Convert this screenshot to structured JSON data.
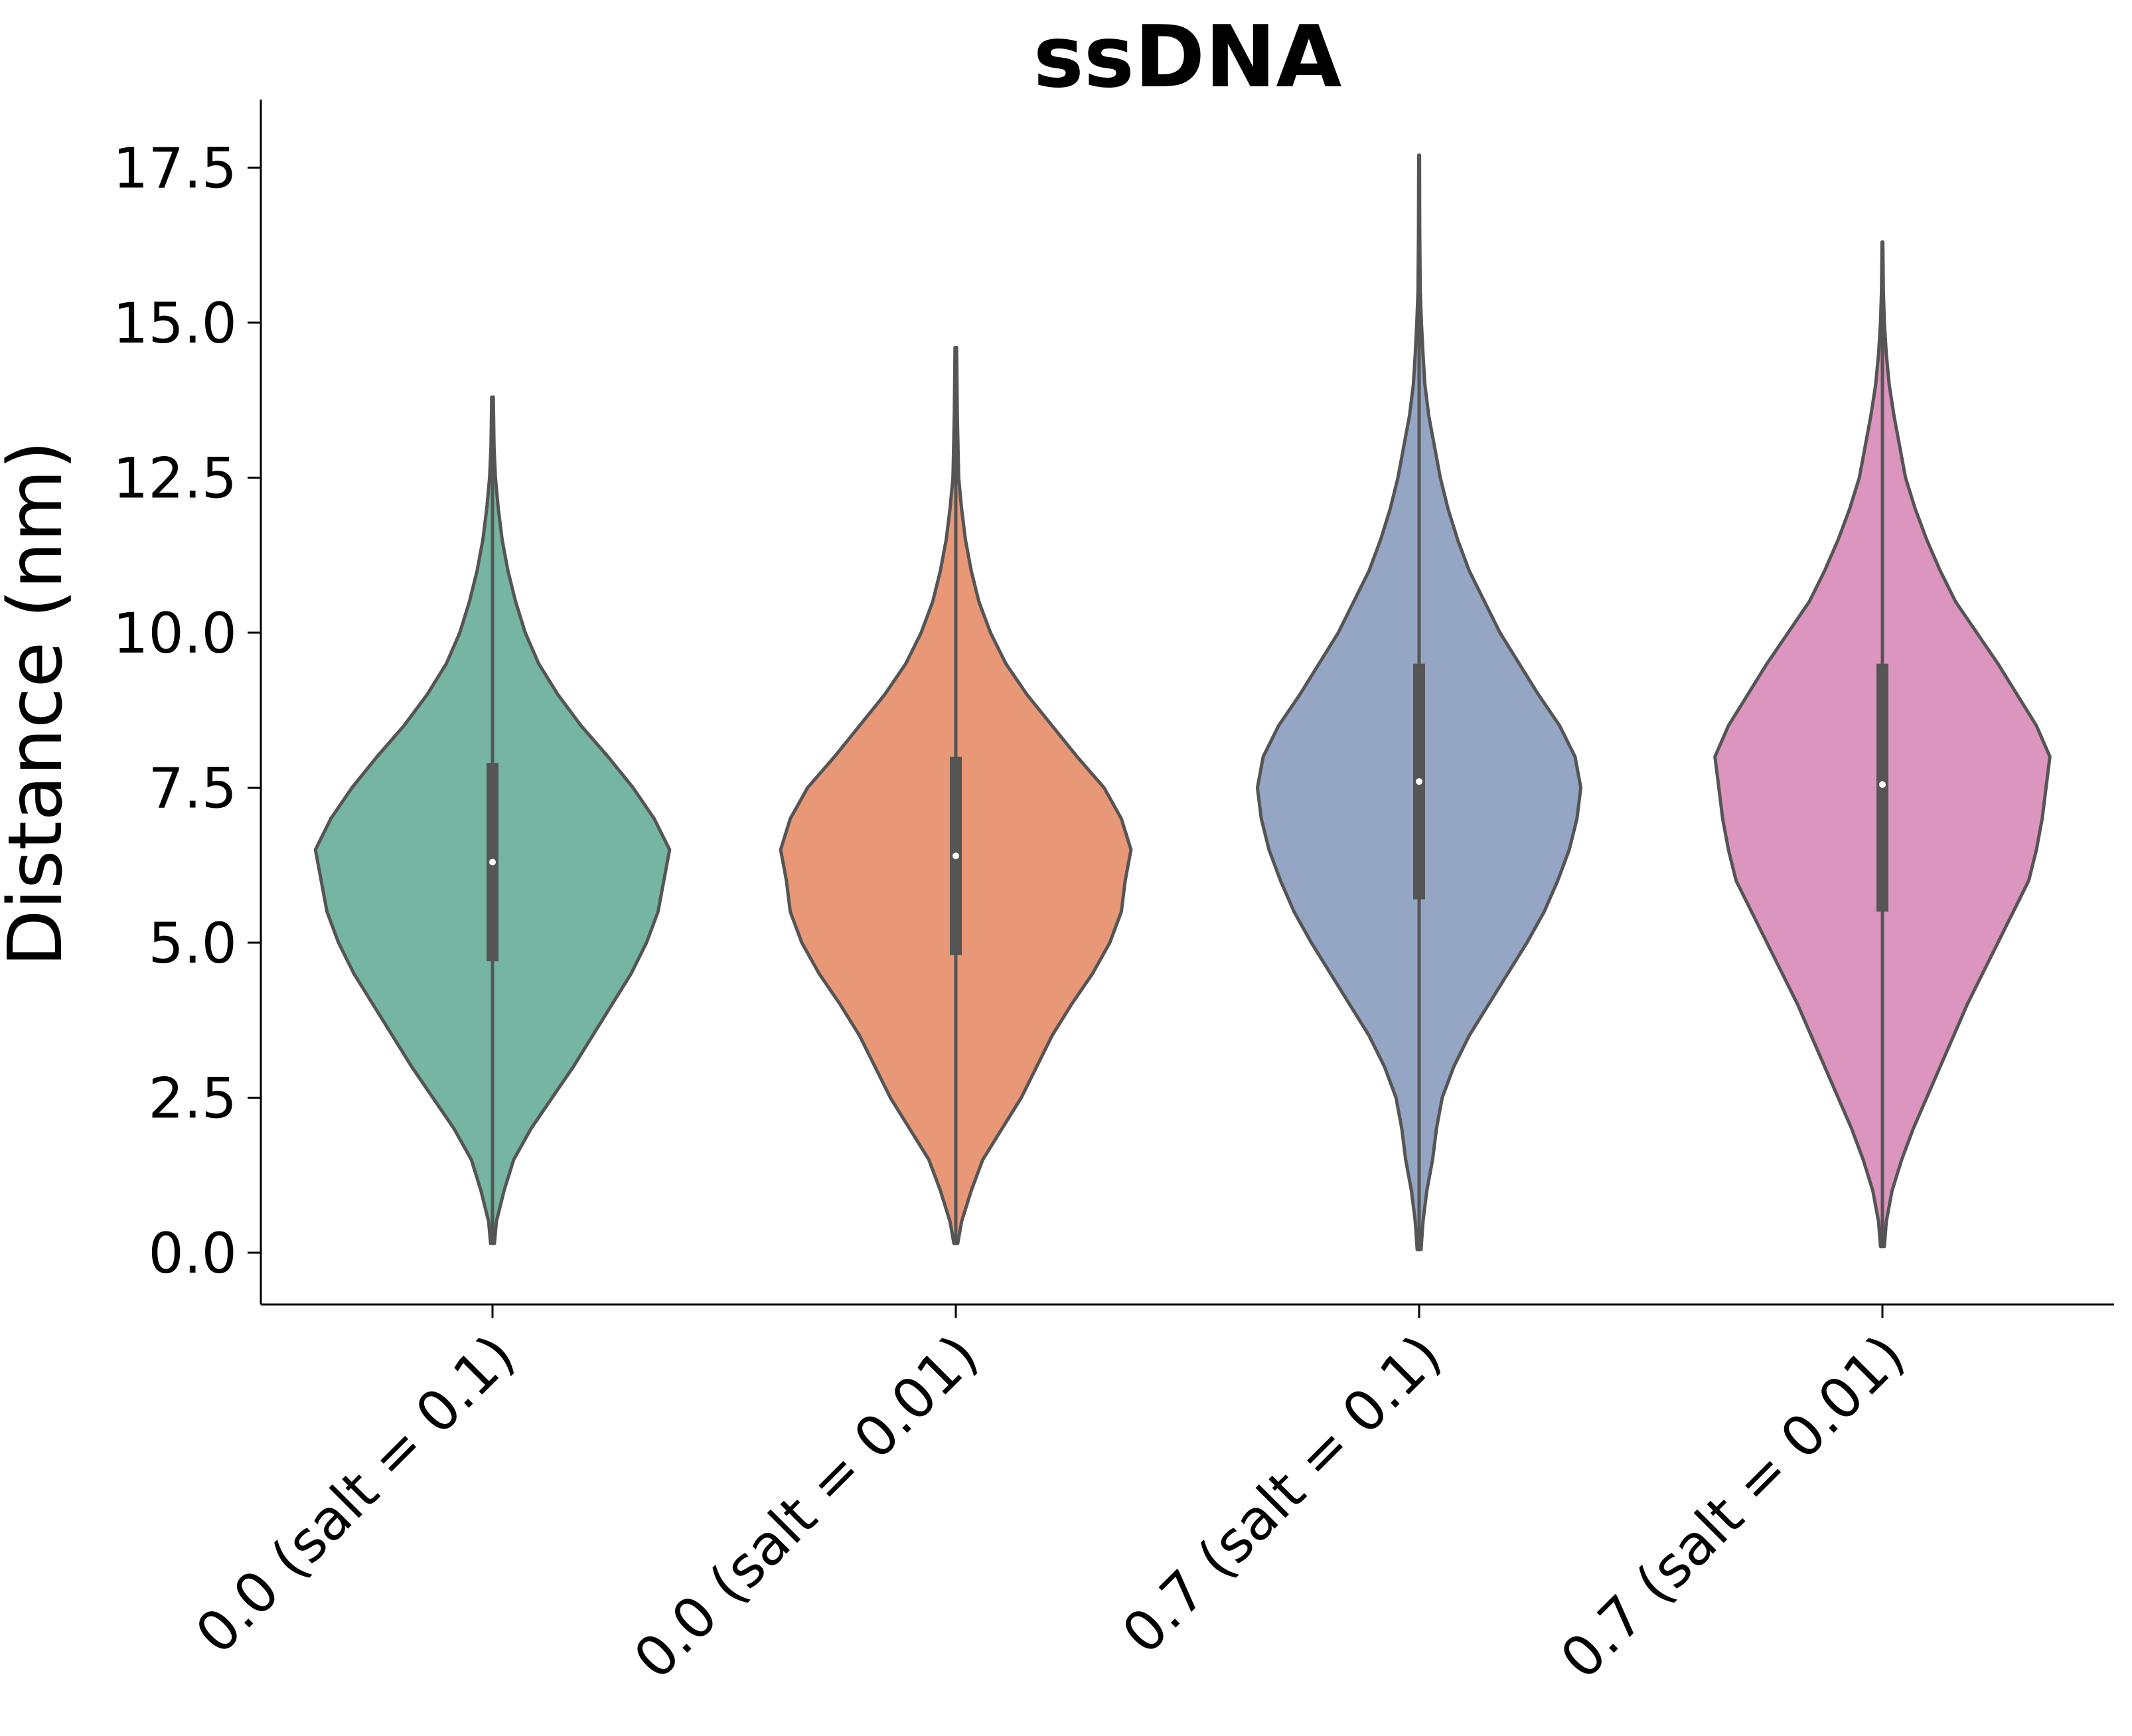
{
  "chart_data": {
    "type": "violin",
    "title": "ssDNA",
    "xlabel": "",
    "ylabel": "Distance (nm)",
    "ylim": [
      -0.8,
      18.6
    ],
    "yticks": [
      0.0,
      2.5,
      5.0,
      7.5,
      10.0,
      12.5,
      15.0,
      17.5
    ],
    "ytick_labels": [
      "0.0",
      "2.5",
      "5.0",
      "7.5",
      "10.0",
      "12.5",
      "15.0",
      "17.5"
    ],
    "grid": false,
    "categories": [
      "0.0 (salt = 0.1)",
      "0.0 (salt = 0.01)",
      "0.7 (salt = 0.1)",
      "0.7 (salt = 0.01)"
    ],
    "series": [
      {
        "category": "0.0 (salt = 0.1)",
        "color": "#75b5a1",
        "min": 0.15,
        "max": 13.8,
        "q1": 4.7,
        "median": 6.3,
        "q3": 7.9,
        "density": [
          [
            0.15,
            0.01
          ],
          [
            0.5,
            0.02
          ],
          [
            1.0,
            0.06
          ],
          [
            1.5,
            0.11
          ],
          [
            2.0,
            0.2
          ],
          [
            2.5,
            0.31
          ],
          [
            3.0,
            0.42
          ],
          [
            3.5,
            0.52
          ],
          [
            4.0,
            0.62
          ],
          [
            4.5,
            0.72
          ],
          [
            5.0,
            0.8
          ],
          [
            5.5,
            0.86
          ],
          [
            6.0,
            0.89
          ],
          [
            6.5,
            0.92
          ],
          [
            7.0,
            0.84
          ],
          [
            7.5,
            0.73
          ],
          [
            8.0,
            0.6
          ],
          [
            8.5,
            0.46
          ],
          [
            9.0,
            0.34
          ],
          [
            9.5,
            0.24
          ],
          [
            10.0,
            0.17
          ],
          [
            10.5,
            0.12
          ],
          [
            11.0,
            0.08
          ],
          [
            11.5,
            0.05
          ],
          [
            12.0,
            0.03
          ],
          [
            12.5,
            0.015
          ],
          [
            13.0,
            0.008
          ],
          [
            13.8,
            0.004
          ]
        ]
      },
      {
        "category": "0.0 (salt = 0.01)",
        "color": "#e99877",
        "min": 0.15,
        "max": 14.6,
        "q1": 4.8,
        "median": 6.4,
        "q3": 8.0,
        "density": [
          [
            0.15,
            0.01
          ],
          [
            0.5,
            0.03
          ],
          [
            1.0,
            0.08
          ],
          [
            1.5,
            0.14
          ],
          [
            2.0,
            0.24
          ],
          [
            2.5,
            0.34
          ],
          [
            3.0,
            0.42
          ],
          [
            3.5,
            0.5
          ],
          [
            4.0,
            0.6
          ],
          [
            4.5,
            0.71
          ],
          [
            5.0,
            0.8
          ],
          [
            5.5,
            0.86
          ],
          [
            6.0,
            0.88
          ],
          [
            6.5,
            0.91
          ],
          [
            7.0,
            0.86
          ],
          [
            7.5,
            0.77
          ],
          [
            8.0,
            0.63
          ],
          [
            8.5,
            0.5
          ],
          [
            9.0,
            0.37
          ],
          [
            9.5,
            0.26
          ],
          [
            10.0,
            0.18
          ],
          [
            10.5,
            0.12
          ],
          [
            11.0,
            0.08
          ],
          [
            11.5,
            0.05
          ],
          [
            12.0,
            0.03
          ],
          [
            12.5,
            0.015
          ],
          [
            13.5,
            0.008
          ],
          [
            14.6,
            0.004
          ]
        ]
      },
      {
        "category": "0.7 (salt = 0.1)",
        "color": "#95a5c4",
        "min": 0.05,
        "max": 17.7,
        "q1": 5.7,
        "median": 7.6,
        "q3": 9.5,
        "density": [
          [
            0.05,
            0.01
          ],
          [
            0.5,
            0.02
          ],
          [
            1.0,
            0.04
          ],
          [
            1.5,
            0.07
          ],
          [
            2.0,
            0.09
          ],
          [
            2.5,
            0.12
          ],
          [
            3.0,
            0.18
          ],
          [
            3.5,
            0.26
          ],
          [
            4.0,
            0.36
          ],
          [
            4.5,
            0.46
          ],
          [
            5.0,
            0.56
          ],
          [
            5.5,
            0.65
          ],
          [
            6.0,
            0.72
          ],
          [
            6.5,
            0.78
          ],
          [
            7.0,
            0.82
          ],
          [
            7.5,
            0.84
          ],
          [
            8.0,
            0.81
          ],
          [
            8.5,
            0.73
          ],
          [
            9.0,
            0.62
          ],
          [
            9.5,
            0.52
          ],
          [
            10.0,
            0.42
          ],
          [
            10.5,
            0.34
          ],
          [
            11.0,
            0.26
          ],
          [
            11.5,
            0.2
          ],
          [
            12.0,
            0.15
          ],
          [
            12.5,
            0.11
          ],
          [
            13.0,
            0.08
          ],
          [
            13.5,
            0.05
          ],
          [
            14.0,
            0.03
          ],
          [
            14.5,
            0.02
          ],
          [
            15.0,
            0.012
          ],
          [
            15.5,
            0.006
          ],
          [
            16.5,
            0.003
          ],
          [
            17.7,
            0.002
          ]
        ]
      },
      {
        "category": "0.7 (salt = 0.01)",
        "color": "#dc95bf",
        "min": 0.1,
        "max": 16.3,
        "q1": 5.5,
        "median": 7.55,
        "q3": 9.5,
        "density": [
          [
            0.1,
            0.01
          ],
          [
            0.5,
            0.02
          ],
          [
            1.0,
            0.05
          ],
          [
            1.5,
            0.1
          ],
          [
            2.0,
            0.16
          ],
          [
            2.5,
            0.23
          ],
          [
            3.0,
            0.3
          ],
          [
            3.5,
            0.37
          ],
          [
            4.0,
            0.44
          ],
          [
            4.5,
            0.52
          ],
          [
            5.0,
            0.6
          ],
          [
            5.5,
            0.68
          ],
          [
            6.0,
            0.76
          ],
          [
            6.5,
            0.8
          ],
          [
            7.0,
            0.83
          ],
          [
            7.5,
            0.85
          ],
          [
            8.0,
            0.87
          ],
          [
            8.5,
            0.8
          ],
          [
            9.0,
            0.7
          ],
          [
            9.5,
            0.6
          ],
          [
            10.0,
            0.49
          ],
          [
            10.5,
            0.38
          ],
          [
            11.0,
            0.3
          ],
          [
            11.5,
            0.23
          ],
          [
            12.0,
            0.17
          ],
          [
            12.5,
            0.12
          ],
          [
            13.0,
            0.09
          ],
          [
            13.5,
            0.06
          ],
          [
            14.0,
            0.035
          ],
          [
            14.5,
            0.02
          ],
          [
            15.0,
            0.01
          ],
          [
            15.5,
            0.005
          ],
          [
            16.3,
            0.002
          ]
        ]
      }
    ]
  }
}
